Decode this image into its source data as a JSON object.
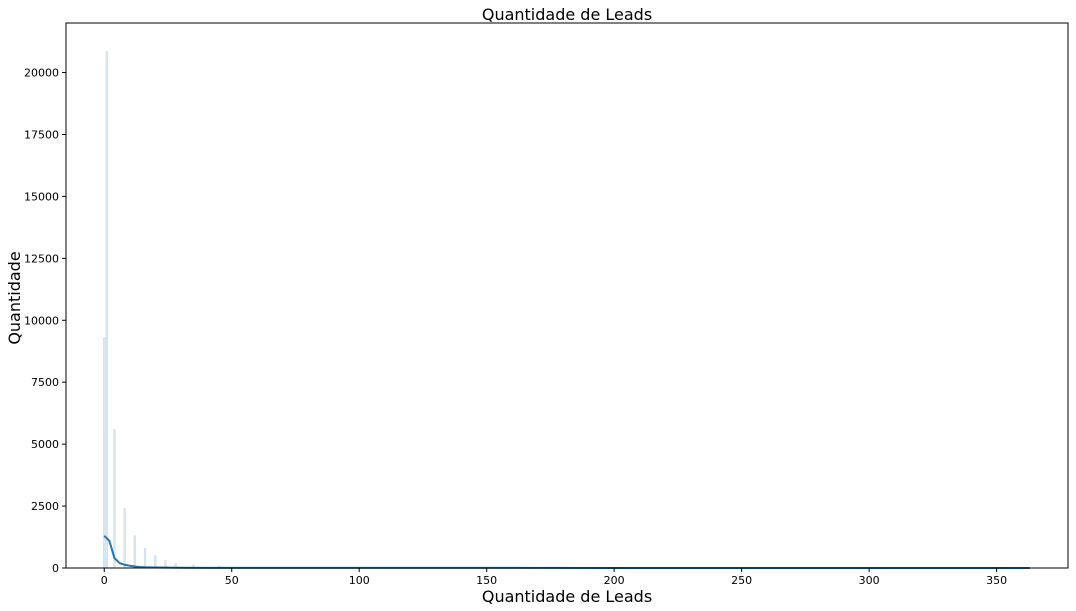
{
  "chart_data": {
    "type": "bar",
    "title": "Quantidade de Leads",
    "xlabel": "Quantidade de Leads",
    "ylabel": "Quantidade",
    "xlim": [
      -15,
      378
    ],
    "ylim": [
      0,
      22000
    ],
    "x_ticks": [
      0,
      50,
      100,
      150,
      200,
      250,
      300,
      350
    ],
    "y_ticks": [
      0,
      2500,
      5000,
      7500,
      10000,
      12500,
      15000,
      17500,
      20000
    ],
    "grid": false,
    "bars": [
      {
        "x": 1,
        "value": 20850
      },
      {
        "x": 0,
        "value": 9300
      },
      {
        "x": 4,
        "value": 5600
      },
      {
        "x": 8,
        "value": 2400
      },
      {
        "x": 12,
        "value": 1300
      },
      {
        "x": 16,
        "value": 800
      },
      {
        "x": 20,
        "value": 500
      },
      {
        "x": 24,
        "value": 300
      },
      {
        "x": 28,
        "value": 200
      },
      {
        "x": 35,
        "value": 120
      },
      {
        "x": 45,
        "value": 80
      }
    ],
    "kde_line": {
      "x": [
        0,
        2,
        4,
        6,
        8,
        10,
        12,
        14,
        16,
        18,
        20,
        25,
        30,
        40,
        50,
        75,
        100,
        150,
        200,
        250,
        300,
        350,
        363
      ],
      "y": [
        1300,
        1100,
        400,
        200,
        130,
        90,
        60,
        40,
        30,
        25,
        20,
        15,
        10,
        6,
        5,
        4,
        3,
        3,
        2,
        2,
        2,
        1,
        1
      ]
    },
    "colors": {
      "bar_fill": "#d9e7f2",
      "bar_stroke": "#c9dced",
      "line": "#1f77b4",
      "axes": "#000000"
    }
  }
}
